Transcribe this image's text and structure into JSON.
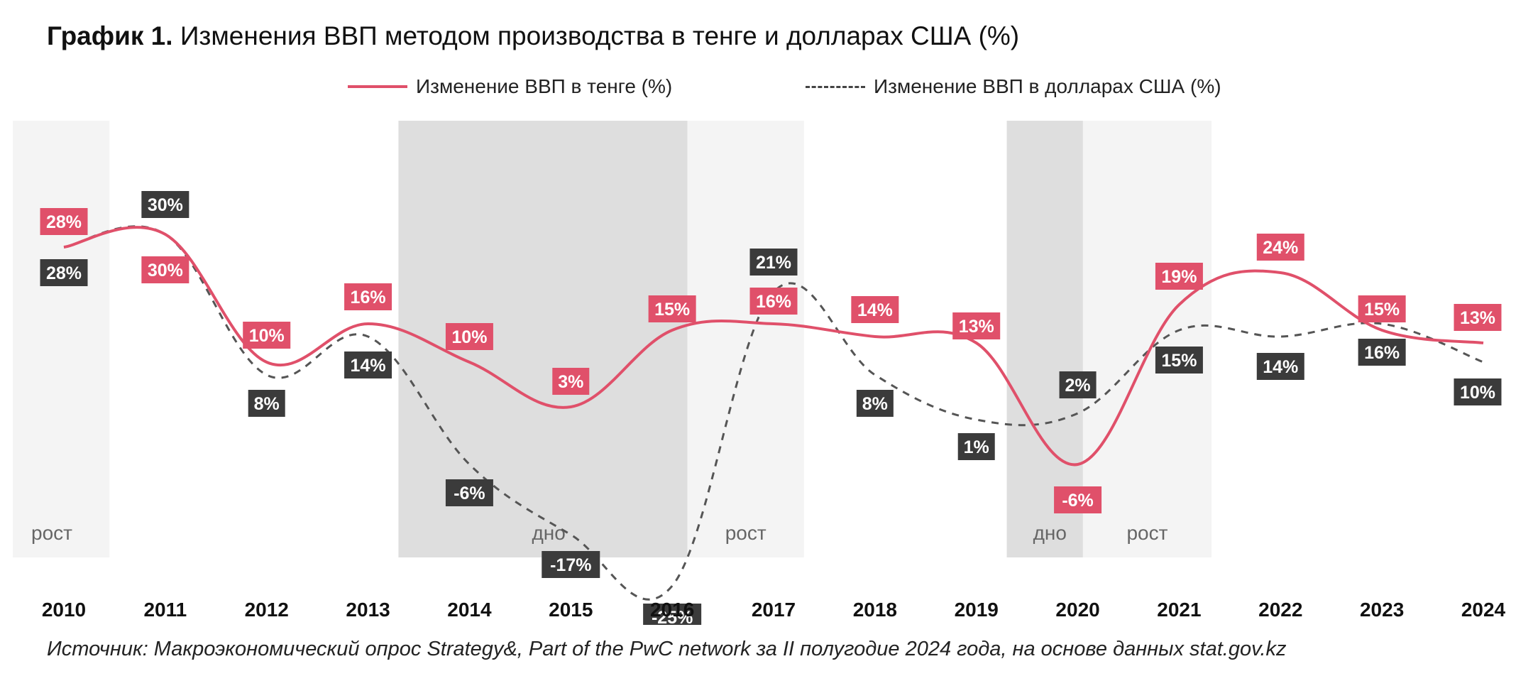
{
  "header": {
    "title_bold": "График 1.",
    "title_rest": "Изменения ВВП методом производства в тенге и долларах США (%)"
  },
  "legend": {
    "kzt": "Изменение ВВП в тенге (%)",
    "usd": "Изменение ВВП в долларах США (%)"
  },
  "footer": {
    "source": "Источник: Макроэкономический опрос Strategy&, Part of the PwC network за II полугодие 2024 года, на основе данных stat.gov.kz"
  },
  "colors": {
    "kzt": "#e0506a",
    "usd": "#555555",
    "label_dark": "#3b3b3b",
    "phase_growth": "#f4f4f4",
    "phase_bottom": "#dedede"
  },
  "chart_data": {
    "type": "line",
    "categories": [
      "2010",
      "2011",
      "2012",
      "2013",
      "2014",
      "2015",
      "2016",
      "2017",
      "2018",
      "2019",
      "2020",
      "2021",
      "2022",
      "2023",
      "2024"
    ],
    "series": [
      {
        "name": "Изменение ВВП в тенге (%)",
        "values": [
          28,
          30,
          10,
          16,
          10,
          3,
          15,
          16,
          14,
          13,
          -6,
          19,
          24,
          15,
          13
        ],
        "style": "solid"
      },
      {
        "name": "Изменение ВВП в долларах США (%)",
        "values": [
          28,
          30,
          8,
          14,
          -6,
          -17,
          -25,
          21,
          8,
          1,
          2,
          15,
          14,
          16,
          10
        ],
        "style": "dashed"
      }
    ],
    "labels": {
      "kzt": [
        "28%",
        "30%",
        "10%",
        "16%",
        "10%",
        "3%",
        "15%",
        "16%",
        "14%",
        "13%",
        "-6%",
        "19%",
        "24%",
        "15%",
        "13%"
      ],
      "usd": [
        "28%",
        "30%",
        "8%",
        "14%",
        "-6%",
        "-17%",
        "-25%",
        "21%",
        "8%",
        "1%",
        "2%",
        "15%",
        "14%",
        "16%",
        "10%"
      ]
    },
    "phases": [
      {
        "label": "рост",
        "from": "2010",
        "to": "2010",
        "kind": "growth"
      },
      {
        "label": "дно",
        "from": "2013",
        "to": "2016",
        "kind": "bottom"
      },
      {
        "label": "рост",
        "from": "2016",
        "to": "2017",
        "kind": "growth"
      },
      {
        "label": "дно",
        "from": "2019",
        "to": "2020",
        "kind": "bottom"
      },
      {
        "label": "рост",
        "from": "2020",
        "to": "2021",
        "kind": "growth"
      }
    ],
    "ylim": [
      -30,
      35
    ],
    "grid": false,
    "legend_position": "top-center"
  }
}
